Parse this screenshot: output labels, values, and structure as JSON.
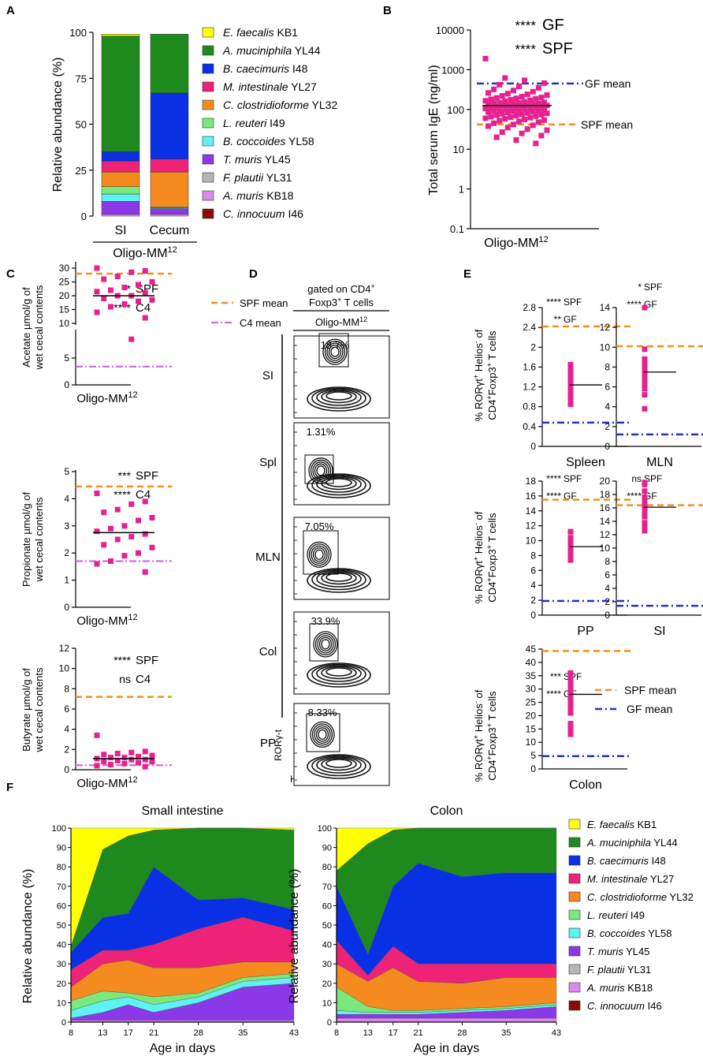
{
  "colors": {
    "pink": "#e8208f",
    "spf_line": "#f39019",
    "gf_line": "#1f35c4",
    "c4_line": "#d06be3"
  },
  "bacteria": [
    {
      "italic": "E. faecalis",
      "code": "KB1",
      "color": "#ffff00"
    },
    {
      "italic": "A. muciniphila",
      "code": "YL44",
      "color": "#1e8a1e"
    },
    {
      "italic": "B. caecimuris",
      "code": "I48",
      "color": "#0a30e6"
    },
    {
      "italic": "M. intestinale",
      "code": "YL27",
      "color": "#ee2277"
    },
    {
      "italic": "C. clostridioforme",
      "code": "YL32",
      "color": "#f58a1f"
    },
    {
      "italic": "L. reuteri",
      "code": "I49",
      "color": "#7be87b"
    },
    {
      "italic": "B. coccoides",
      "code": "YL58",
      "color": "#5ef2f2"
    },
    {
      "italic": "T. muris",
      "code": "YL45",
      "color": "#8a38e8"
    },
    {
      "italic": "F. plautii",
      "code": "YL31",
      "color": "#b5b5b5"
    },
    {
      "italic": "A. muris",
      "code": "KB18",
      "color": "#dd88ee"
    },
    {
      "italic": "C. innocuum",
      "code": "I46",
      "color": "#8b0a0a"
    }
  ],
  "panels": {
    "A": {
      "letter": "A",
      "ylabel": "Relative abundance (%)",
      "group_label": "Oligo-MM",
      "group_sup": "12"
    },
    "B": {
      "letter": "B",
      "ylabel": "Total serum IgE (ng/ml)",
      "xlabel": "Oligo-MM",
      "xsup": "12",
      "sig": [
        {
          "stars": "****",
          "label": "GF"
        },
        {
          "stars": "****",
          "label": "SPF"
        }
      ],
      "ref_labels": {
        "gf": "GF mean",
        "spf": "SPF mean"
      }
    },
    "C": {
      "letter": "C",
      "legend": {
        "spf": "SPF mean",
        "c4": "C4 mean"
      },
      "plots": [
        {
          "ylabel1": "Acetate µmol/g of",
          "ylabel2": "wet cecal contents",
          "xlabel": "Oligo-MM",
          "xsup": "12",
          "sig": [
            {
              "stars": "**",
              "label": "SPF"
            },
            {
              "stars": "****",
              "label": "C4"
            }
          ]
        },
        {
          "ylabel1": "Propionate µmol/g of",
          "ylabel2": "wet cecal contents",
          "xlabel": "Oligo-MM",
          "xsup": "12",
          "sig": [
            {
              "stars": "***",
              "label": "SPF"
            },
            {
              "stars": "****",
              "label": "C4"
            }
          ]
        },
        {
          "ylabel1": "Butyrate µmol/g of",
          "ylabel2": "wet cecal contents",
          "xlabel": "Oligo-MM",
          "xsup": "12",
          "sig": [
            {
              "stars": "****",
              "label": "SPF"
            },
            {
              "stars": "ns",
              "label": "C4"
            }
          ]
        }
      ]
    },
    "D": {
      "letter": "D",
      "title1": "gated on CD4",
      "title1_sup": "+",
      "title2": "Foxp3",
      "title2_sup": "+",
      "title2_rest": " T cells",
      "group": "Oligo-MM",
      "group_sup": "12",
      "y_axis": "RORγ-t",
      "x_axis": "Helios",
      "rows": [
        {
          "tissue": "SI",
          "percent": "18.7%"
        },
        {
          "tissue": "Spl",
          "percent": "1.31%"
        },
        {
          "tissue": "MLN",
          "percent": "7.05%"
        },
        {
          "tissue": "Col",
          "percent": "33.9%"
        },
        {
          "tissue": "PP",
          "percent": "8.33%"
        }
      ]
    },
    "E": {
      "letter": "E",
      "ylabel1": "% RORγt",
      "ylabel1_sup": "+",
      "ylabel1_mid": " Helios",
      "ylabel1_sup2": "-",
      "ylabel1_end": " of",
      "ylabel2": "CD4",
      "ylabel2_sup": "+",
      "ylabel2_mid": "Foxp3",
      "ylabel2_sup2": "+",
      "ylabel2_end": " T cells",
      "legend": {
        "spf": "SPF mean",
        "gf": "GF mean"
      },
      "plots": [
        {
          "tissue": "Spleen",
          "sig": [
            {
              "stars": "****",
              "label": "SPF"
            },
            {
              "stars": "**",
              "label": "GF"
            }
          ]
        },
        {
          "tissue": "MLN",
          "sig": [
            {
              "stars": "*",
              "label": "SPF"
            },
            {
              "stars": "****",
              "label": "GF"
            }
          ]
        },
        {
          "tissue": "PP",
          "sig": [
            {
              "stars": "****",
              "label": "SPF"
            },
            {
              "stars": "****",
              "label": "GF"
            }
          ]
        },
        {
          "tissue": "SI",
          "sig": [
            {
              "stars": "ns",
              "label": "SPF"
            },
            {
              "stars": "****",
              "label": "GF"
            }
          ]
        },
        {
          "tissue": "Colon",
          "sig": [
            {
              "stars": "***",
              "label": "SPF"
            },
            {
              "stars": "****",
              "label": "GF"
            }
          ]
        }
      ]
    },
    "F": {
      "letter": "F",
      "ylabel": "Relative abundance (%)",
      "xlabel": "Age in days",
      "titles": [
        "Small intestine",
        "Colon"
      ]
    }
  },
  "chart_data": [
    {
      "panel": "A",
      "type": "bar",
      "stacked": true,
      "categories": [
        "SI",
        "Cecum"
      ],
      "ylabel": "Relative abundance (%)",
      "ylim": [
        0,
        100
      ],
      "yticks": [
        0,
        25,
        50,
        75,
        100
      ],
      "series": [
        {
          "name": "C. innocuum I46",
          "values": [
            0,
            0
          ]
        },
        {
          "name": "A. muris KB18",
          "values": [
            1,
            1
          ]
        },
        {
          "name": "F. plautii YL31",
          "values": [
            0,
            0
          ]
        },
        {
          "name": "T. muris YL45",
          "values": [
            7,
            3
          ]
        },
        {
          "name": "B. coccoides YL58",
          "values": [
            4,
            0.5
          ]
        },
        {
          "name": "L. reuteri I49",
          "values": [
            4,
            0.5
          ]
        },
        {
          "name": "C. clostridioforme YL32",
          "values": [
            8,
            19
          ]
        },
        {
          "name": "M. intestinale YL27",
          "values": [
            6,
            7
          ]
        },
        {
          "name": "B. caecimuris I48",
          "values": [
            5,
            36
          ]
        },
        {
          "name": "A. muciniphila YL44",
          "values": [
            63,
            32
          ]
        },
        {
          "name": "E. faecalis KB1",
          "values": [
            1,
            0
          ]
        }
      ]
    },
    {
      "panel": "B",
      "type": "scatter",
      "yscale": "log",
      "ylabel": "Total serum IgE (ng/ml)",
      "ylim": [
        0.1,
        10000
      ],
      "yticks": [
        0.1,
        1,
        10,
        100,
        1000,
        10000
      ],
      "mean": 125,
      "gf_mean": 450,
      "spf_mean": 42,
      "values": [
        1900,
        620,
        540,
        460,
        420,
        380,
        350,
        320,
        300,
        280,
        260,
        250,
        240,
        230,
        220,
        210,
        200,
        195,
        190,
        185,
        180,
        175,
        170,
        165,
        160,
        155,
        150,
        148,
        145,
        142,
        140,
        138,
        135,
        132,
        130,
        128,
        126,
        124,
        122,
        120,
        118,
        116,
        114,
        112,
        110,
        108,
        106,
        104,
        102,
        100,
        98,
        96,
        94,
        92,
        90,
        88,
        86,
        84,
        82,
        80,
        78,
        76,
        74,
        72,
        70,
        68,
        66,
        64,
        62,
        60,
        58,
        56,
        54,
        52,
        50,
        48,
        45,
        42,
        40,
        38,
        35,
        32,
        30,
        27,
        25,
        22,
        20,
        17,
        14
      ]
    },
    {
      "panel": "C-acetate",
      "type": "scatter",
      "broken_axis": true,
      "yticks_top": [
        10,
        15,
        20,
        25,
        30
      ],
      "yticks_bottom": [
        0,
        5,
        10
      ],
      "mean": 20,
      "spf_mean": 28,
      "c4_mean": 3.4,
      "values": [
        30,
        29,
        28.5,
        27,
        26,
        25,
        24,
        23,
        22,
        21.5,
        21,
        20,
        20,
        19,
        18.5,
        18,
        17,
        16,
        14,
        12,
        8.5
      ]
    },
    {
      "panel": "C-propionate",
      "type": "scatter",
      "ylim": [
        0,
        5
      ],
      "yticks": [
        0,
        1,
        2,
        3,
        4,
        5
      ],
      "mean": 2.75,
      "spf_mean": 4.45,
      "c4_mean": 1.7,
      "values": [
        4.2,
        3.9,
        3.8,
        3.6,
        3.5,
        3.3,
        3.2,
        3.0,
        2.9,
        2.8,
        2.7,
        2.6,
        2.5,
        2.3,
        2.2,
        2.0,
        1.9,
        1.7,
        1.6,
        1.3
      ]
    },
    {
      "panel": "C-butyrate",
      "type": "scatter",
      "ylim": [
        0,
        12
      ],
      "yticks": [
        0,
        2,
        4,
        6,
        8,
        10,
        12
      ],
      "mean": 1.1,
      "spf_mean": 7.2,
      "c4_mean": 0.45,
      "values": [
        3.4,
        1.8,
        1.7,
        1.6,
        1.5,
        1.4,
        1.3,
        1.2,
        1.2,
        1.1,
        1.0,
        1.0,
        0.9,
        0.8,
        0.8,
        0.7,
        0.6,
        0.5,
        0.4,
        0.3
      ]
    },
    {
      "panel": "E-Spleen",
      "type": "scatter",
      "ylim": [
        0,
        2.8
      ],
      "yticks": [
        0,
        0.4,
        0.8,
        1.2,
        1.6,
        2.0,
        2.4,
        2.8
      ],
      "mean": 1.24,
      "spf_mean": 2.42,
      "gf_mean": 0.48,
      "values": [
        1.65,
        1.6,
        1.5,
        1.42,
        1.35,
        1.3,
        1.25,
        1.2,
        1.15,
        1.1,
        1.05,
        0.95,
        0.85
      ]
    },
    {
      "panel": "E-MLN",
      "type": "scatter",
      "ylim": [
        0,
        14
      ],
      "yticks": [
        0,
        2,
        4,
        6,
        8,
        10,
        12,
        14
      ],
      "mean": 7.5,
      "spf_mean": 10.1,
      "gf_mean": 1.2,
      "values": [
        14,
        9.8,
        8.8,
        8.3,
        7.9,
        7.6,
        7.4,
        7.2,
        6.9,
        6.5,
        6.2,
        5.8,
        5.2,
        3.8
      ]
    },
    {
      "panel": "E-PP",
      "type": "scatter",
      "ylim": [
        0,
        18
      ],
      "yticks": [
        0,
        2,
        4,
        6,
        8,
        10,
        12,
        14,
        16,
        18
      ],
      "mean": 9.2,
      "spf_mean": 15.5,
      "gf_mean": 1.9,
      "values": [
        11.2,
        10.4,
        10,
        9.8,
        9.5,
        9.3,
        9.1,
        9.0,
        8.8,
        8.5,
        8.2,
        7.9,
        7.4
      ]
    },
    {
      "panel": "E-SI",
      "type": "scatter",
      "ylim": [
        0,
        20
      ],
      "yticks": [
        0,
        2,
        4,
        6,
        8,
        10,
        12,
        14,
        16,
        18,
        20
      ],
      "mean": 16.1,
      "spf_mean": 16.4,
      "gf_mean": 1.4,
      "values": [
        19.8,
        19.5,
        18.5,
        17.6,
        17.2,
        16.8,
        16.4,
        16,
        15.3,
        14.7,
        13.8,
        13,
        12.6
      ]
    },
    {
      "panel": "E-Colon",
      "type": "scatter",
      "ylim": [
        0,
        45
      ],
      "yticks": [
        0,
        5,
        10,
        15,
        20,
        25,
        30,
        35,
        40,
        45
      ],
      "mean": 28,
      "spf_mean": 44.3,
      "gf_mean": 4.8,
      "values": [
        36,
        35,
        33,
        32,
        31,
        30,
        28,
        26,
        24,
        23,
        21,
        17,
        15,
        13
      ]
    },
    {
      "panel": "F-small-intestine",
      "type": "area",
      "stacked": true,
      "title": "Small intestine",
      "xlabel": "Age in days",
      "ylabel": "Relative abundance (%)",
      "x": [
        8,
        13,
        17,
        21,
        28,
        35,
        43
      ],
      "ylim": [
        0,
        100
      ],
      "series": [
        {
          "name": "C. innocuum I46",
          "values": [
            0,
            0,
            0,
            0,
            0,
            0,
            0
          ]
        },
        {
          "name": "A. muris KB18",
          "values": [
            1,
            1,
            1,
            1,
            1,
            1,
            1
          ]
        },
        {
          "name": "F. plautii YL31",
          "values": [
            0,
            0,
            0,
            0,
            0,
            0,
            0
          ]
        },
        {
          "name": "T. muris YL45",
          "values": [
            1,
            4,
            8,
            4,
            9,
            17,
            19
          ]
        },
        {
          "name": "B. coccoides YL58",
          "values": [
            4,
            6,
            4,
            4,
            3,
            3,
            3
          ]
        },
        {
          "name": "L. reuteri I49",
          "values": [
            5,
            5,
            2,
            4,
            2,
            2,
            2
          ]
        },
        {
          "name": "C. clostridioforme YL32",
          "values": [
            7,
            14,
            17,
            15,
            13,
            8,
            6
          ]
        },
        {
          "name": "M. intestinale YL27",
          "values": [
            9,
            7,
            5,
            12,
            20,
            23,
            16
          ]
        },
        {
          "name": "B. caecimuris I48",
          "values": [
            9,
            17,
            19,
            40,
            15,
            10,
            11
          ]
        },
        {
          "name": "A. muciniphila YL44",
          "values": [
            3,
            35,
            40,
            19,
            37,
            36,
            41
          ]
        },
        {
          "name": "E. faecalis KB1",
          "values": [
            61,
            11,
            4,
            1,
            0,
            0,
            1
          ]
        }
      ]
    },
    {
      "panel": "F-colon",
      "type": "area",
      "stacked": true,
      "title": "Colon",
      "xlabel": "Age in days",
      "ylabel": "Relative abundance (%)",
      "x": [
        8,
        13,
        17,
        21,
        28,
        35,
        43
      ],
      "ylim": [
        0,
        100
      ],
      "series": [
        {
          "name": "C. innocuum I46",
          "values": [
            0,
            0,
            0,
            0,
            0,
            0,
            0
          ]
        },
        {
          "name": "A. muris KB18",
          "values": [
            2,
            2,
            2,
            2,
            2,
            2,
            2
          ]
        },
        {
          "name": "F. plautii YL31",
          "values": [
            0,
            0,
            0,
            0,
            0,
            0,
            0
          ]
        },
        {
          "name": "T. muris YL45",
          "values": [
            2,
            2,
            2,
            2,
            3,
            4,
            6
          ]
        },
        {
          "name": "B. coccoides YL58",
          "values": [
            2,
            1,
            1,
            1,
            1,
            1,
            1
          ]
        },
        {
          "name": "L. reuteri I49",
          "values": [
            12,
            3,
            1,
            1,
            1,
            1,
            1
          ]
        },
        {
          "name": "C. clostridioforme YL32",
          "values": [
            12,
            13,
            22,
            15,
            13,
            15,
            13
          ]
        },
        {
          "name": "M. intestinale YL27",
          "values": [
            12,
            3,
            11,
            9,
            10,
            7,
            7
          ]
        },
        {
          "name": "B. caecimuris I48",
          "values": [
            28,
            11,
            31,
            52,
            45,
            47,
            47
          ]
        },
        {
          "name": "A. muciniphila YL44",
          "values": [
            8,
            57,
            29,
            18,
            25,
            23,
            23
          ]
        },
        {
          "name": "E. faecalis KB1",
          "values": [
            22,
            8,
            1,
            0,
            0,
            0,
            0
          ]
        }
      ]
    }
  ]
}
